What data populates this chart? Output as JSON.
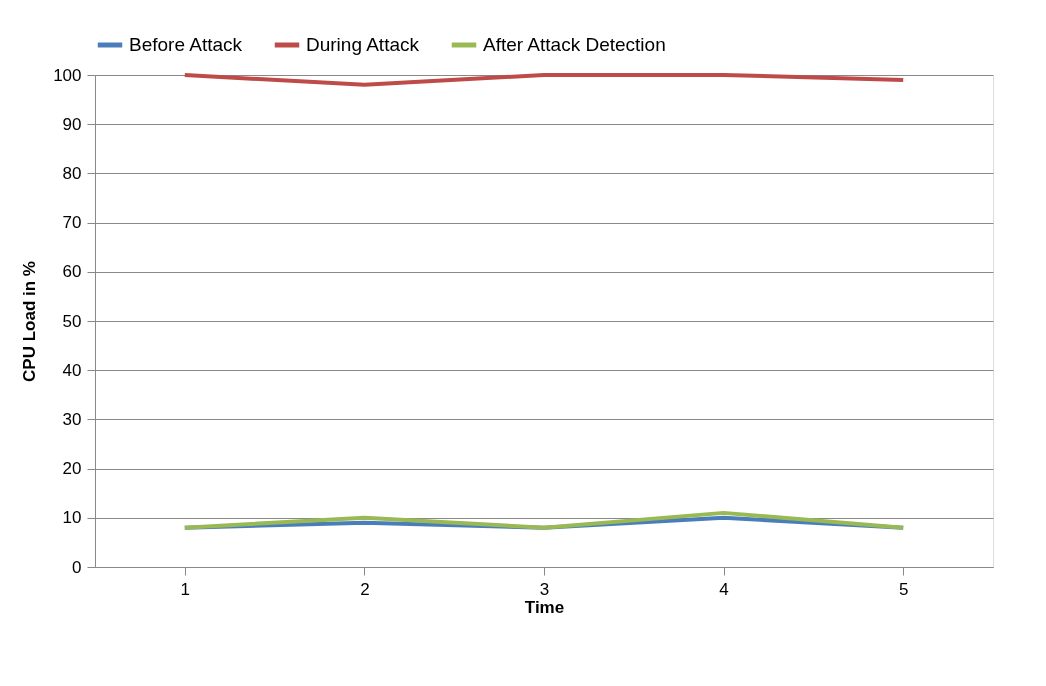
{
  "chart_data": {
    "type": "line",
    "xlabel": "Time",
    "ylabel": "CPU Load in %",
    "categories": [
      "1",
      "2",
      "3",
      "4",
      "5"
    ],
    "series": [
      {
        "name": "Before Attack",
        "color": "#4a7ebb",
        "values": [
          8,
          9,
          8,
          10,
          8
        ]
      },
      {
        "name": "During Attack",
        "color": "#be4b48",
        "values": [
          100,
          98,
          100,
          100,
          99
        ]
      },
      {
        "name": "After Attack Detection",
        "color": "#98b954",
        "values": [
          8,
          10,
          8,
          11,
          8
        ]
      }
    ],
    "ylim": [
      0,
      100
    ],
    "yticks": [
      0,
      10,
      20,
      30,
      40,
      50,
      60,
      70,
      80,
      90,
      100
    ],
    "grid": "y",
    "legend": "top",
    "marker": "none",
    "line_style": "solid"
  }
}
